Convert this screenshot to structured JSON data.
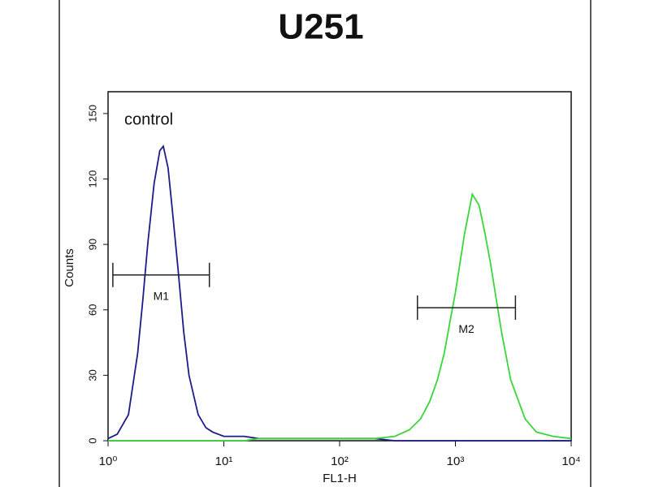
{
  "chart_data": {
    "type": "line",
    "title": "U251",
    "annotation": "control",
    "x_label": "FL1-H",
    "y_label": "Counts",
    "log_x": true,
    "x": [
      1,
      1.2,
      1.5,
      1.8,
      2,
      2.2,
      2.5,
      2.8,
      3,
      3.3,
      3.6,
      4,
      4.5,
      5,
      6,
      7,
      8,
      10,
      15,
      20,
      30,
      50,
      100,
      200,
      300,
      400,
      500,
      600,
      700,
      800,
      900,
      1000,
      1200,
      1400,
      1600,
      1800,
      2000,
      2500,
      3000,
      4000,
      5000,
      7000,
      10000
    ],
    "series": [
      {
        "color": "#1c1c8a",
        "values": [
          1,
          3,
          12,
          40,
          65,
          90,
          118,
          133,
          135,
          125,
          105,
          80,
          50,
          30,
          12,
          6,
          4,
          2,
          2,
          1,
          1,
          1,
          1,
          1,
          0,
          0,
          0,
          0,
          0,
          0,
          0,
          0,
          0,
          0,
          0,
          0,
          0,
          0,
          0,
          0,
          0,
          0,
          0
        ]
      },
      {
        "color": "#3ad63a",
        "values": [
          0,
          0,
          0,
          0,
          0,
          0,
          0,
          0,
          0,
          0,
          0,
          0,
          0,
          0,
          0,
          0,
          0,
          0,
          0,
          1,
          1,
          1,
          1,
          1,
          2,
          5,
          10,
          18,
          28,
          40,
          55,
          68,
          95,
          113,
          108,
          95,
          82,
          50,
          28,
          10,
          4,
          2,
          1
        ]
      }
    ],
    "markers": [
      {
        "label": "M1",
        "x": [
          1.1,
          7.5
        ],
        "y": 76
      },
      {
        "label": "M2",
        "x": [
          470,
          3300
        ],
        "y": 61
      }
    ],
    "xlim": [
      1,
      10000
    ],
    "xticks": [
      {
        "value": 1,
        "label": "10⁰"
      },
      {
        "value": 10,
        "label": "10¹"
      },
      {
        "value": 100,
        "label": "10²"
      },
      {
        "value": 1000,
        "label": "10³"
      },
      {
        "value": 10000,
        "label": "10⁴"
      }
    ],
    "ylim": [
      0,
      160
    ],
    "yticks": [
      0,
      30,
      60,
      90,
      120,
      150
    ]
  }
}
